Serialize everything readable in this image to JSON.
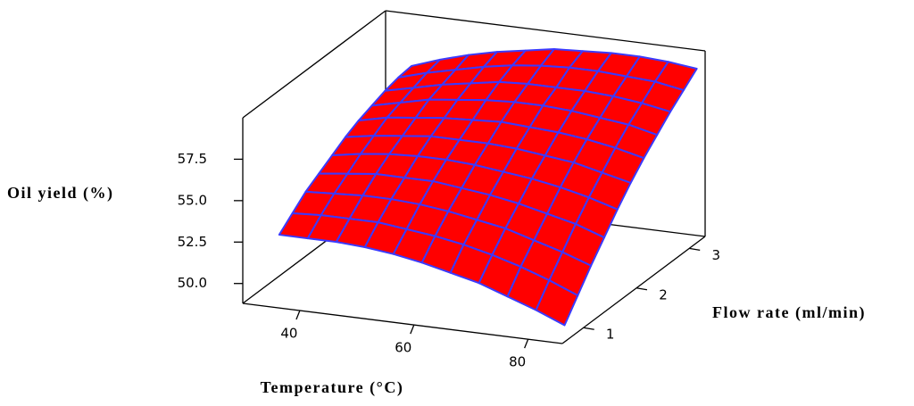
{
  "chart_data": {
    "type": "surface",
    "x_label": "Temperature (°C)",
    "y_label": "Flow rate (ml/min)",
    "z_label": "Oil yield (%)",
    "x": [
      35,
      40,
      45,
      50,
      55,
      60,
      65,
      70,
      75,
      80,
      85
    ],
    "y": [
      0.75,
      1.0,
      1.25,
      1.5,
      1.75,
      2.0,
      2.25,
      2.5,
      2.75,
      3.0,
      3.25
    ],
    "z": [
      [
        52.8,
        52.8,
        52.8,
        52.7,
        52.5,
        52.2,
        51.8,
        51.4,
        50.8,
        50.2,
        49.5
      ],
      [
        53.5,
        53.6,
        53.6,
        53.6,
        53.4,
        53.2,
        52.9,
        52.5,
        52.0,
        51.4,
        50.7
      ],
      [
        54.2,
        54.3,
        54.4,
        54.4,
        54.3,
        54.1,
        53.8,
        53.5,
        53.0,
        52.5,
        51.9
      ],
      [
        54.7,
        54.9,
        55.1,
        55.1,
        55.1,
        54.9,
        54.7,
        54.4,
        54.0,
        53.6,
        53.0
      ],
      [
        55.2,
        55.5,
        55.7,
        55.8,
        55.8,
        55.7,
        55.5,
        55.3,
        55.0,
        54.6,
        54.1
      ],
      [
        55.7,
        56.0,
        56.2,
        56.4,
        56.4,
        56.4,
        56.3,
        56.1,
        55.9,
        55.5,
        55.1
      ],
      [
        56.1,
        56.5,
        56.7,
        56.9,
        57.0,
        57.1,
        57.0,
        56.9,
        56.7,
        56.4,
        56.0
      ],
      [
        56.4,
        56.8,
        57.2,
        57.4,
        57.6,
        57.7,
        57.7,
        57.6,
        57.4,
        57.2,
        56.8
      ],
      [
        56.7,
        57.1,
        57.5,
        57.8,
        58.1,
        58.2,
        58.2,
        58.2,
        58.1,
        57.9,
        57.6
      ],
      [
        56.9,
        57.4,
        57.8,
        58.2,
        58.5,
        58.7,
        58.8,
        58.8,
        58.7,
        58.6,
        58.3
      ],
      [
        57.0,
        57.6,
        58.1,
        58.5,
        58.8,
        59.1,
        59.2,
        59.3,
        59.3,
        59.2,
        59.0
      ]
    ],
    "xlim": [
      30,
      86
    ],
    "ylim": [
      0.6,
      3.3
    ],
    "zlim": [
      48.8,
      60
    ],
    "xticks": [
      40,
      60,
      80
    ],
    "yticks": [
      1,
      2,
      3
    ],
    "zticks": [
      {
        "value": 50,
        "label": "50.0"
      },
      {
        "value": 52.5,
        "label": "52.5"
      },
      {
        "value": 55,
        "label": "55.0"
      },
      {
        "value": 57.5,
        "label": "57.5"
      }
    ],
    "color": "#ff0000",
    "edge_color": "#3a3aff"
  }
}
